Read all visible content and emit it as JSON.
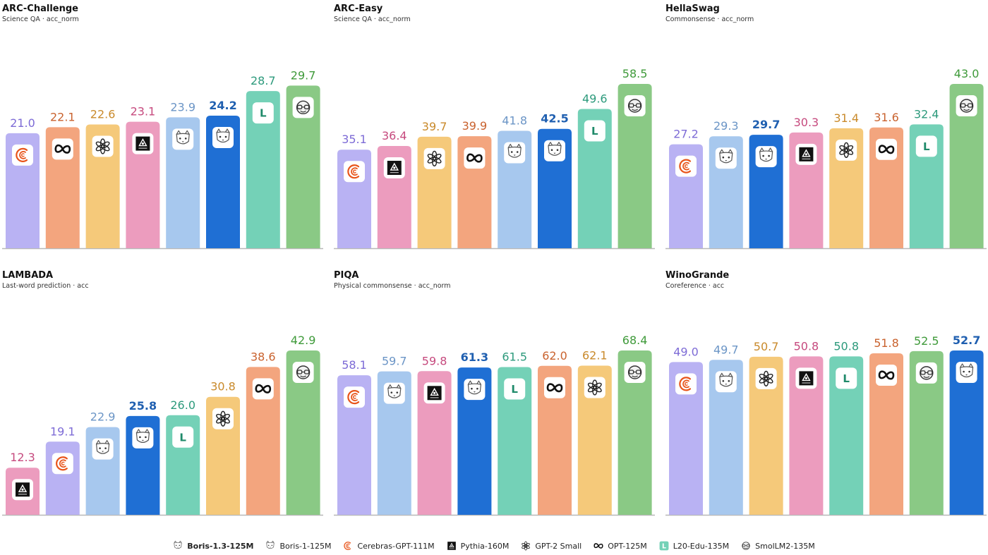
{
  "colors": {
    "boris13": "#1f6fd4",
    "boris1": "#a7c8ee",
    "cerebras": "#b9b2f3",
    "pythia": "#ec9cbe",
    "gpt2": "#f5c97a",
    "opt": "#f3a57e",
    "l20": "#74d1b7",
    "smollm": "#8ac985"
  },
  "label_colors": {
    "boris13": "#1f5fb0",
    "boris1": "#6b95c6",
    "cerebras": "#7d6bd6",
    "pythia": "#c64a7e",
    "gpt2": "#c98a2b",
    "opt": "#c9622e",
    "l20": "#2d9a7c",
    "smollm": "#3f9a3a"
  },
  "legend": [
    {
      "key": "boris13",
      "label": "Boris-1.3-125M",
      "icon": "fox-icon",
      "highlight": true
    },
    {
      "key": "boris1",
      "label": "Boris-1-125M",
      "icon": "fox-icon"
    },
    {
      "key": "cerebras",
      "label": "Cerebras-GPT-111M",
      "icon": "cerebras-icon"
    },
    {
      "key": "pythia",
      "label": "Pythia-160M",
      "icon": "pythia-icon"
    },
    {
      "key": "gpt2",
      "label": "GPT-2 Small",
      "icon": "openai-icon"
    },
    {
      "key": "opt",
      "label": "OPT-125M",
      "icon": "meta-icon"
    },
    {
      "key": "l20",
      "label": "L20-Edu-135M",
      "icon": "l-badge-icon"
    },
    {
      "key": "smollm",
      "label": "SmolLM2-135M",
      "icon": "smollm-icon"
    }
  ],
  "chart_data": [
    {
      "type": "bar",
      "title": "ARC-Challenge",
      "subtitle": "Science QA · acc_norm",
      "ylim": [
        0,
        30
      ],
      "bars": [
        {
          "model": "cerebras",
          "value": 21.0,
          "label": "21.0"
        },
        {
          "model": "opt",
          "value": 22.1,
          "label": "22.1"
        },
        {
          "model": "gpt2",
          "value": 22.6,
          "label": "22.6"
        },
        {
          "model": "pythia",
          "value": 23.1,
          "label": "23.1"
        },
        {
          "model": "boris1",
          "value": 23.9,
          "label": "23.9"
        },
        {
          "model": "boris13",
          "value": 24.2,
          "label": "24.2"
        },
        {
          "model": "l20",
          "value": 28.7,
          "label": "28.7"
        },
        {
          "model": "smollm",
          "value": 29.7,
          "label": "29.7"
        }
      ]
    },
    {
      "type": "bar",
      "title": "ARC-Easy",
      "subtitle": "Science QA · acc_norm",
      "ylim": [
        0,
        58.5
      ],
      "bars": [
        {
          "model": "cerebras",
          "value": 35.1,
          "label": "35.1"
        },
        {
          "model": "pythia",
          "value": 36.4,
          "label": "36.4"
        },
        {
          "model": "gpt2",
          "value": 39.7,
          "label": "39.7"
        },
        {
          "model": "opt",
          "value": 39.9,
          "label": "39.9"
        },
        {
          "model": "boris1",
          "value": 41.8,
          "label": "41.8"
        },
        {
          "model": "boris13",
          "value": 42.5,
          "label": "42.5"
        },
        {
          "model": "l20",
          "value": 49.6,
          "label": "49.6"
        },
        {
          "model": "smollm",
          "value": 58.5,
          "label": "58.5"
        }
      ]
    },
    {
      "type": "bar",
      "title": "HellaSwag",
      "subtitle": "Commonsense · acc_norm",
      "ylim": [
        0,
        43.0
      ],
      "bars": [
        {
          "model": "cerebras",
          "value": 27.2,
          "label": "27.2"
        },
        {
          "model": "boris1",
          "value": 29.3,
          "label": "29.3"
        },
        {
          "model": "boris13",
          "value": 29.7,
          "label": "29.7"
        },
        {
          "model": "pythia",
          "value": 30.3,
          "label": "30.3"
        },
        {
          "model": "gpt2",
          "value": 31.4,
          "label": "31.4"
        },
        {
          "model": "opt",
          "value": 31.6,
          "label": "31.6"
        },
        {
          "model": "l20",
          "value": 32.4,
          "label": "32.4"
        },
        {
          "model": "smollm",
          "value": 43.0,
          "label": "43.0"
        }
      ]
    },
    {
      "type": "bar",
      "title": "LAMBADA",
      "subtitle": "Last-word prediction · acc",
      "ylim": [
        0,
        42.9
      ],
      "bars": [
        {
          "model": "pythia",
          "value": 12.3,
          "label": "12.3"
        },
        {
          "model": "cerebras",
          "value": 19.1,
          "label": "19.1"
        },
        {
          "model": "boris1",
          "value": 22.9,
          "label": "22.9"
        },
        {
          "model": "boris13",
          "value": 25.8,
          "label": "25.8"
        },
        {
          "model": "l20",
          "value": 26.0,
          "label": "26.0"
        },
        {
          "model": "gpt2",
          "value": 30.8,
          "label": "30.8"
        },
        {
          "model": "opt",
          "value": 38.6,
          "label": "38.6"
        },
        {
          "model": "smollm",
          "value": 42.9,
          "label": "42.9"
        }
      ]
    },
    {
      "type": "bar",
      "title": "PIQA",
      "subtitle": "Physical commonsense · acc_norm",
      "ylim": [
        0,
        68.4
      ],
      "bars": [
        {
          "model": "cerebras",
          "value": 58.1,
          "label": "58.1"
        },
        {
          "model": "boris1",
          "value": 59.7,
          "label": "59.7"
        },
        {
          "model": "pythia",
          "value": 59.8,
          "label": "59.8"
        },
        {
          "model": "boris13",
          "value": 61.3,
          "label": "61.3"
        },
        {
          "model": "l20",
          "value": 61.5,
          "label": "61.5"
        },
        {
          "model": "opt",
          "value": 62.0,
          "label": "62.0"
        },
        {
          "model": "gpt2",
          "value": 62.1,
          "label": "62.1"
        },
        {
          "model": "smollm",
          "value": 68.4,
          "label": "68.4"
        }
      ]
    },
    {
      "type": "bar",
      "title": "WinoGrande",
      "subtitle": "Coreference · acc",
      "ylim": [
        0,
        52.7
      ],
      "bars": [
        {
          "model": "cerebras",
          "value": 49.0,
          "label": "49.0"
        },
        {
          "model": "boris1",
          "value": 49.7,
          "label": "49.7"
        },
        {
          "model": "gpt2",
          "value": 50.7,
          "label": "50.7"
        },
        {
          "model": "pythia",
          "value": 50.8,
          "label": "50.8"
        },
        {
          "model": "l20",
          "value": 50.8,
          "label": "50.8"
        },
        {
          "model": "opt",
          "value": 51.8,
          "label": "51.8"
        },
        {
          "model": "smollm",
          "value": 52.5,
          "label": "52.5"
        },
        {
          "model": "boris13",
          "value": 52.7,
          "label": "52.7"
        }
      ]
    }
  ]
}
